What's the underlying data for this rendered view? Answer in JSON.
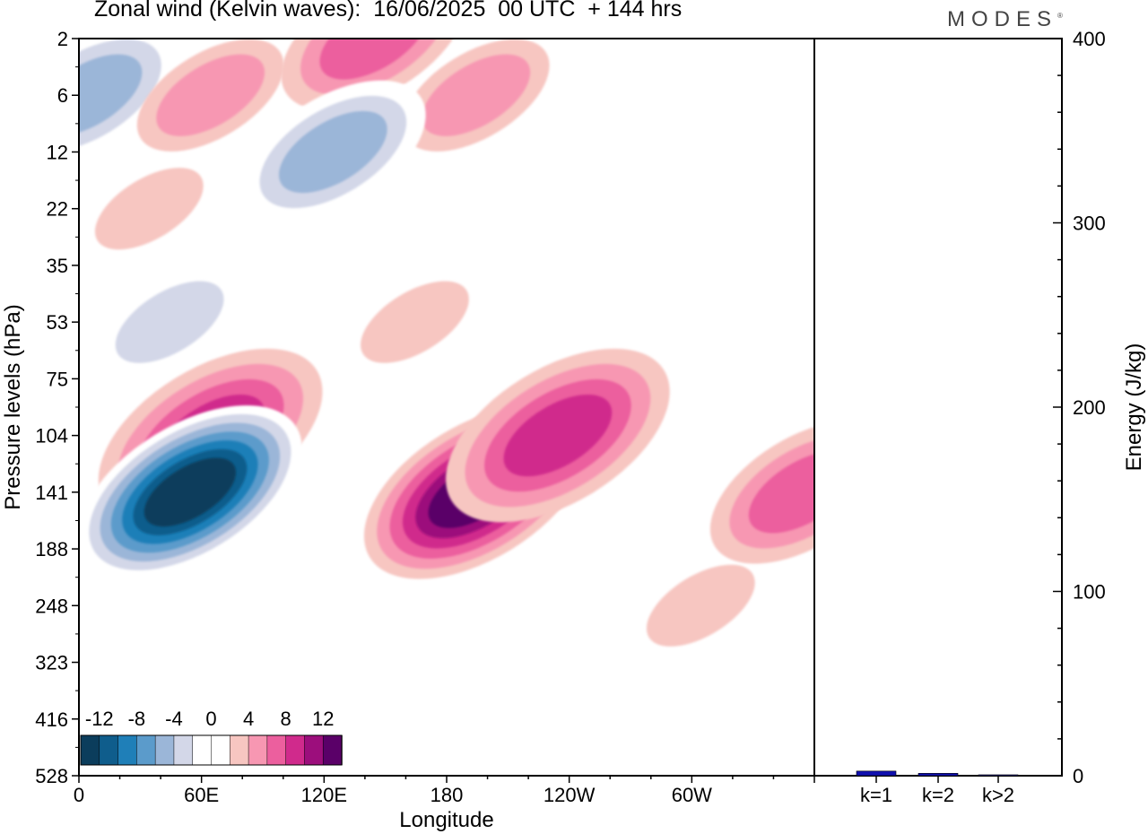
{
  "header": {
    "title": "Zonal wind (Kelvin waves):  16/06/2025  00 UTC  + 144 hrs",
    "brand": "MODES",
    "brand_mark": "®"
  },
  "colors": {
    "bands": [
      "#0b3d5c",
      "#0f5d8c",
      "#1f7fb8",
      "#5b9bcb",
      "#9bb6d8",
      "#d3d7e8",
      "#ffffff",
      "#ffffff",
      "#f7c6c1",
      "#f797b2",
      "#ec5f9e",
      "#d02a8c",
      "#9c0e7c",
      "#5a0068"
    ],
    "bar": "#1010b0"
  },
  "chart_data": [
    {
      "type": "heatmap",
      "title": "Zonal wind (Kelvin waves):  16/06/2025  00 UTC  + 144 hrs",
      "xlabel": "Longitude",
      "ylabel": "Pressure levels (hPa)",
      "x_ticks": [
        "0",
        "60E",
        "120E",
        "180",
        "120W",
        "60W"
      ],
      "y_ticks": [
        "2",
        "6",
        "12",
        "22",
        "35",
        "53",
        "75",
        "104",
        "141",
        "188",
        "248",
        "323",
        "416",
        "528"
      ],
      "colorbar": {
        "tick_labels": [
          "-12",
          "-8",
          "-4",
          "0",
          "4",
          "8",
          "12"
        ],
        "levels": [
          -14,
          -12,
          -10,
          -8,
          -6,
          -4,
          -2,
          0,
          2,
          4,
          6,
          8,
          10,
          12,
          14
        ]
      },
      "features": [
        {
          "lon": 0,
          "level": "6",
          "value": -6
        },
        {
          "lon": 60,
          "level": "6",
          "value": 4
        },
        {
          "lon": 140,
          "level": "2",
          "value": 6
        },
        {
          "lon": 190,
          "level": "6",
          "value": 5
        },
        {
          "lon": 120,
          "level": "12",
          "value": -6
        },
        {
          "lon": 30,
          "level": "22",
          "value": 3
        },
        {
          "lon": 40,
          "level": "53",
          "value": -4
        },
        {
          "lon": 60,
          "level": "104",
          "value": 8
        },
        {
          "lon": 50,
          "level": "141",
          "value": -14
        },
        {
          "lon": 190,
          "level": "141",
          "value": 12
        },
        {
          "lon": 230,
          "level": "104",
          "value": 8
        },
        {
          "lon": 300,
          "level": "248",
          "value": 2
        },
        {
          "lon": 350,
          "level": "141",
          "value": 6
        },
        {
          "lon": 160,
          "level": "53",
          "value": 3
        }
      ]
    },
    {
      "type": "bar",
      "categories": [
        "k=1",
        "k=2",
        "k>2"
      ],
      "values": [
        2.5,
        1.3,
        0.5
      ],
      "ylabel": "Energy (J/kg)",
      "ylim": [
        0,
        400
      ],
      "y_ticks": [
        0,
        100,
        200,
        300,
        400
      ]
    }
  ]
}
